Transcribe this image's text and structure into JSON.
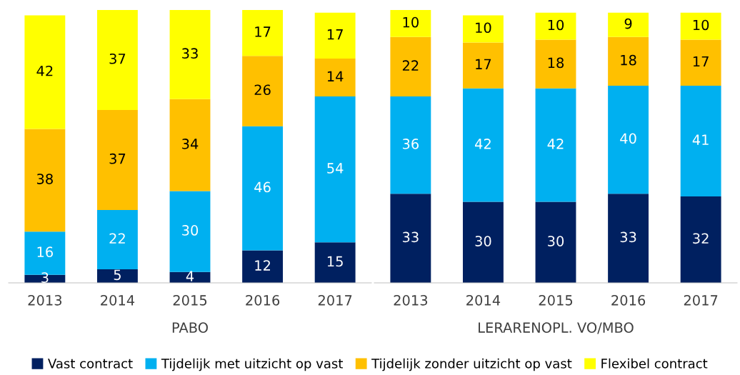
{
  "chart_data": [
    {
      "type": "bar",
      "stacked": true,
      "data_labels": true,
      "xlabel": "PABO",
      "categories": [
        "2013",
        "2014",
        "2015",
        "2016",
        "2017"
      ],
      "legend": "bottom",
      "grid": false,
      "series": [
        {
          "name": "Vast contract",
          "color": "#002060",
          "values": [
            3,
            5,
            4,
            12,
            15
          ]
        },
        {
          "name": "Tijdelijk met uitzicht op vast",
          "color": "#00b0f0",
          "values": [
            16,
            22,
            30,
            46,
            54
          ]
        },
        {
          "name": "Tijdelijk zonder uitzicht op vast",
          "color": "#ffc000",
          "values": [
            38,
            37,
            34,
            26,
            14
          ]
        },
        {
          "name": "Flexibel contract",
          "color": "#ffff00",
          "values": [
            42,
            37,
            33,
            17,
            17
          ]
        }
      ]
    },
    {
      "type": "bar",
      "stacked": true,
      "data_labels": true,
      "xlabel": "LERARENOPL. VO/MBO",
      "categories": [
        "2013",
        "2014",
        "2015",
        "2016",
        "2017"
      ],
      "legend": false,
      "grid": false,
      "series": [
        {
          "color": "#002060",
          "values": [
            33,
            30,
            30,
            33,
            32
          ]
        },
        {
          "color": "#00b0f0",
          "values": [
            36,
            42,
            42,
            40,
            41
          ]
        },
        {
          "color": "#ffc000",
          "values": [
            22,
            17,
            18,
            18,
            17
          ]
        },
        {
          "color": "#ffff00",
          "values": [
            10,
            10,
            10,
            9,
            10
          ]
        }
      ]
    }
  ]
}
